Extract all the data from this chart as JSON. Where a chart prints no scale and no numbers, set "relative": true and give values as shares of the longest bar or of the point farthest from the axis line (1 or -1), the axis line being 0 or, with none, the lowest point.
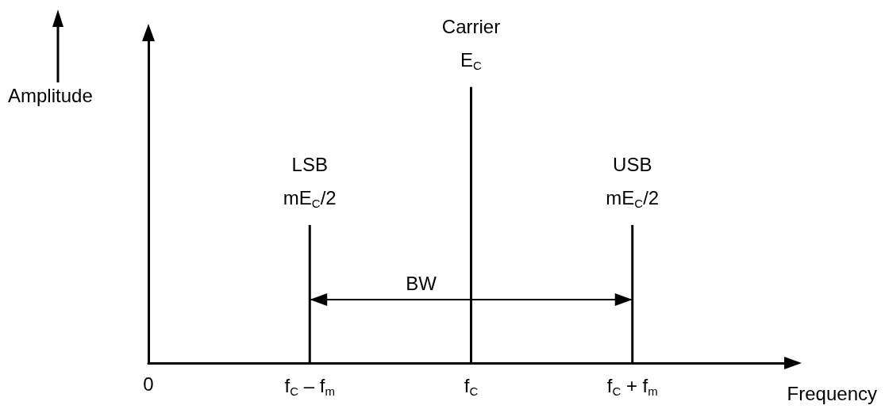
{
  "chart_data": {
    "type": "bar",
    "relative": true,
    "xlabel": "Frequency",
    "ylabel": "Amplitude",
    "categories": [
      "0",
      "f$_{C}$ – f$_{m}$",
      "f$_{C}$",
      "f$_{C}$ + f$_{m}$"
    ],
    "values": [
      null,
      0.5,
      1,
      0.5
    ],
    "color": "#000000",
    "tick_labels": "x",
    "grid": false,
    "annotations": [
      {
        "text": "LSB",
        "x": "f$_{C}$ – f$_{m}$",
        "y": 0.5
      },
      {
        "text": "mE$_{C}$/2",
        "x": "f$_{C}$ – f$_{m}$",
        "y": 0.5
      },
      {
        "text": "Carrier",
        "x": "f$_{C}$",
        "y": 1
      },
      {
        "text": "E$_{C}$",
        "x": "f$_{C}$",
        "y": 1
      },
      {
        "text": "USB",
        "x": "f$_{C}$ + f$_{m}$",
        "y": 0.5
      },
      {
        "text": "mE$_{C}$/2",
        "x": "f$_{C}$ + f$_{m}$",
        "y": 0.5
      },
      {
        "text": "BW",
        "x": "f$_{C}$",
        "y": 0.23
      }
    ]
  }
}
